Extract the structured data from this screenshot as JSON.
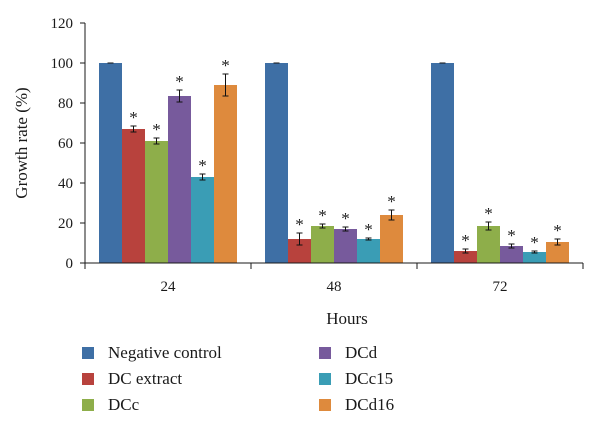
{
  "chart_data": {
    "type": "bar",
    "xlabel": "Hours",
    "ylabel": "Growth rate (%)",
    "ylim": [
      0,
      120
    ],
    "yticks": [
      "0",
      "20",
      "40",
      "60",
      "80",
      "100",
      "120"
    ],
    "categories": [
      "24",
      "48",
      "72"
    ],
    "significance_marker": "*",
    "legend_columns": 2,
    "series": [
      {
        "name": "Negative control",
        "color": "#3e6fa5",
        "values": [
          100,
          100,
          100
        ],
        "errors": [
          0,
          0,
          0
        ],
        "significant": [
          false,
          false,
          false
        ]
      },
      {
        "name": "DC extract",
        "color": "#b8423d",
        "values": [
          67,
          12,
          6
        ],
        "errors": [
          1.5,
          3,
          1
        ],
        "significant": [
          true,
          true,
          true
        ]
      },
      {
        "name": "DCc",
        "color": "#8eae4a",
        "values": [
          61,
          18.5,
          18.5
        ],
        "errors": [
          1.5,
          1,
          2
        ],
        "significant": [
          true,
          true,
          true
        ]
      },
      {
        "name": "DCd",
        "color": "#775a9c",
        "values": [
          83.5,
          17,
          8.5
        ],
        "errors": [
          3,
          1,
          1
        ],
        "significant": [
          true,
          true,
          true
        ]
      },
      {
        "name": "DCc15",
        "color": "#3a9db5",
        "values": [
          43,
          12,
          5.5
        ],
        "errors": [
          1.5,
          0.5,
          0.5
        ],
        "significant": [
          true,
          true,
          true
        ]
      },
      {
        "name": "DCd16",
        "color": "#de8a3d",
        "values": [
          89,
          24,
          10.5
        ],
        "errors": [
          5.5,
          2.5,
          1.5
        ],
        "significant": [
          true,
          true,
          true
        ]
      }
    ]
  }
}
